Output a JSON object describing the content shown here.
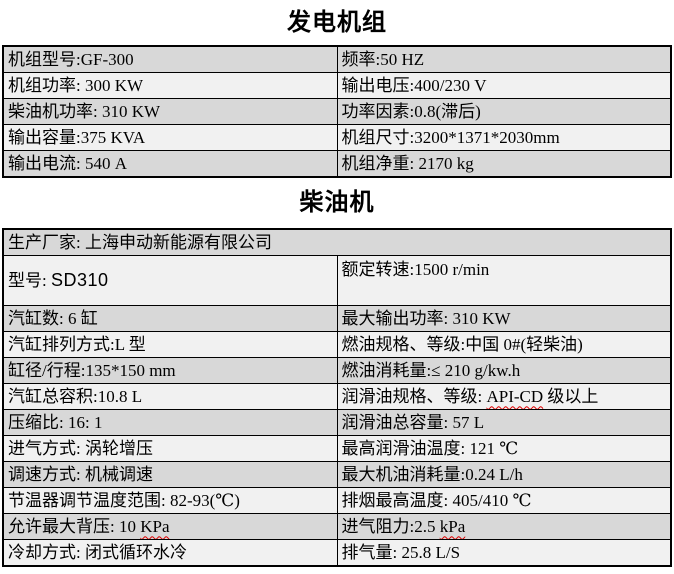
{
  "colors": {
    "row_dark": "#d8d8d8",
    "row_light": "#f1f1f1",
    "border": "#000000",
    "text": "#000000",
    "squiggle_red": "#e00000",
    "page_bg": "#ffffff"
  },
  "section_generator": {
    "title": "发电机组",
    "rows": [
      {
        "left": "机组型号:GF-300",
        "right": "频率:50 HZ"
      },
      {
        "left": "机组功率: 300 KW",
        "right": "输出电压:400/230 V"
      },
      {
        "left": "柴油机功率: 310 KW",
        "right": "功率因素:0.8(滞后)"
      },
      {
        "left": "输出容量:375 KVA",
        "right": "机组尺寸:3200*1371*2030mm"
      },
      {
        "left": "输出电流: 540 A",
        "right": "机组净重: 2170 kg"
      }
    ]
  },
  "section_engine": {
    "title": "柴油机",
    "manufacturer": "生产厂家: 上海申动新能源有限公司",
    "model": {
      "label": "型号: ",
      "value": "SD310",
      "right": "额定转速:1500 r/min"
    },
    "rows": [
      {
        "left": {
          "pre": "汽缸数: 6 缸"
        },
        "right": {
          "pre": "最大输出功率: 310 KW"
        }
      },
      {
        "left": {
          "pre": "汽缸排列方式:L 型"
        },
        "right": {
          "pre": "燃油规格、等级:中国 0#(轻柴油)"
        }
      },
      {
        "left": {
          "pre": "缸径/行程:135*150 mm"
        },
        "right": {
          "pre": "燃油消耗量:≤ 210 g/kw.h"
        }
      },
      {
        "left": {
          "pre": "汽缸总容积:10.8 L"
        },
        "right": {
          "pre": "润滑油规格、等级: ",
          "mark": "API-CD",
          "post": " 级以上"
        }
      },
      {
        "left": {
          "pre": "压缩比: 16: 1"
        },
        "right": {
          "pre": "润滑油总容量: 57 L"
        }
      },
      {
        "left": {
          "pre": "进气方式: 涡轮增压"
        },
        "right": {
          "pre": "最高润滑油温度: 121 ℃"
        }
      },
      {
        "left": {
          "pre": "调速方式: 机械调速"
        },
        "right": {
          "pre": "最大机油消耗量:0.24 L/h"
        }
      },
      {
        "left": {
          "pre": "节温器调节温度范围: 82-93(℃)"
        },
        "right": {
          "pre": "排烟最高温度: 405/410 ℃"
        }
      },
      {
        "left": {
          "pre": "允许最大背压: 10 ",
          "mark": "KPa",
          "post": ""
        },
        "right": {
          "pre": "进气阻力:2.5 ",
          "mark": "kPa",
          "post": ""
        }
      },
      {
        "left": {
          "pre": "冷却方式: 闭式循环水冷"
        },
        "right": {
          "pre": "排气量: 25.8 L/S"
        }
      }
    ]
  }
}
